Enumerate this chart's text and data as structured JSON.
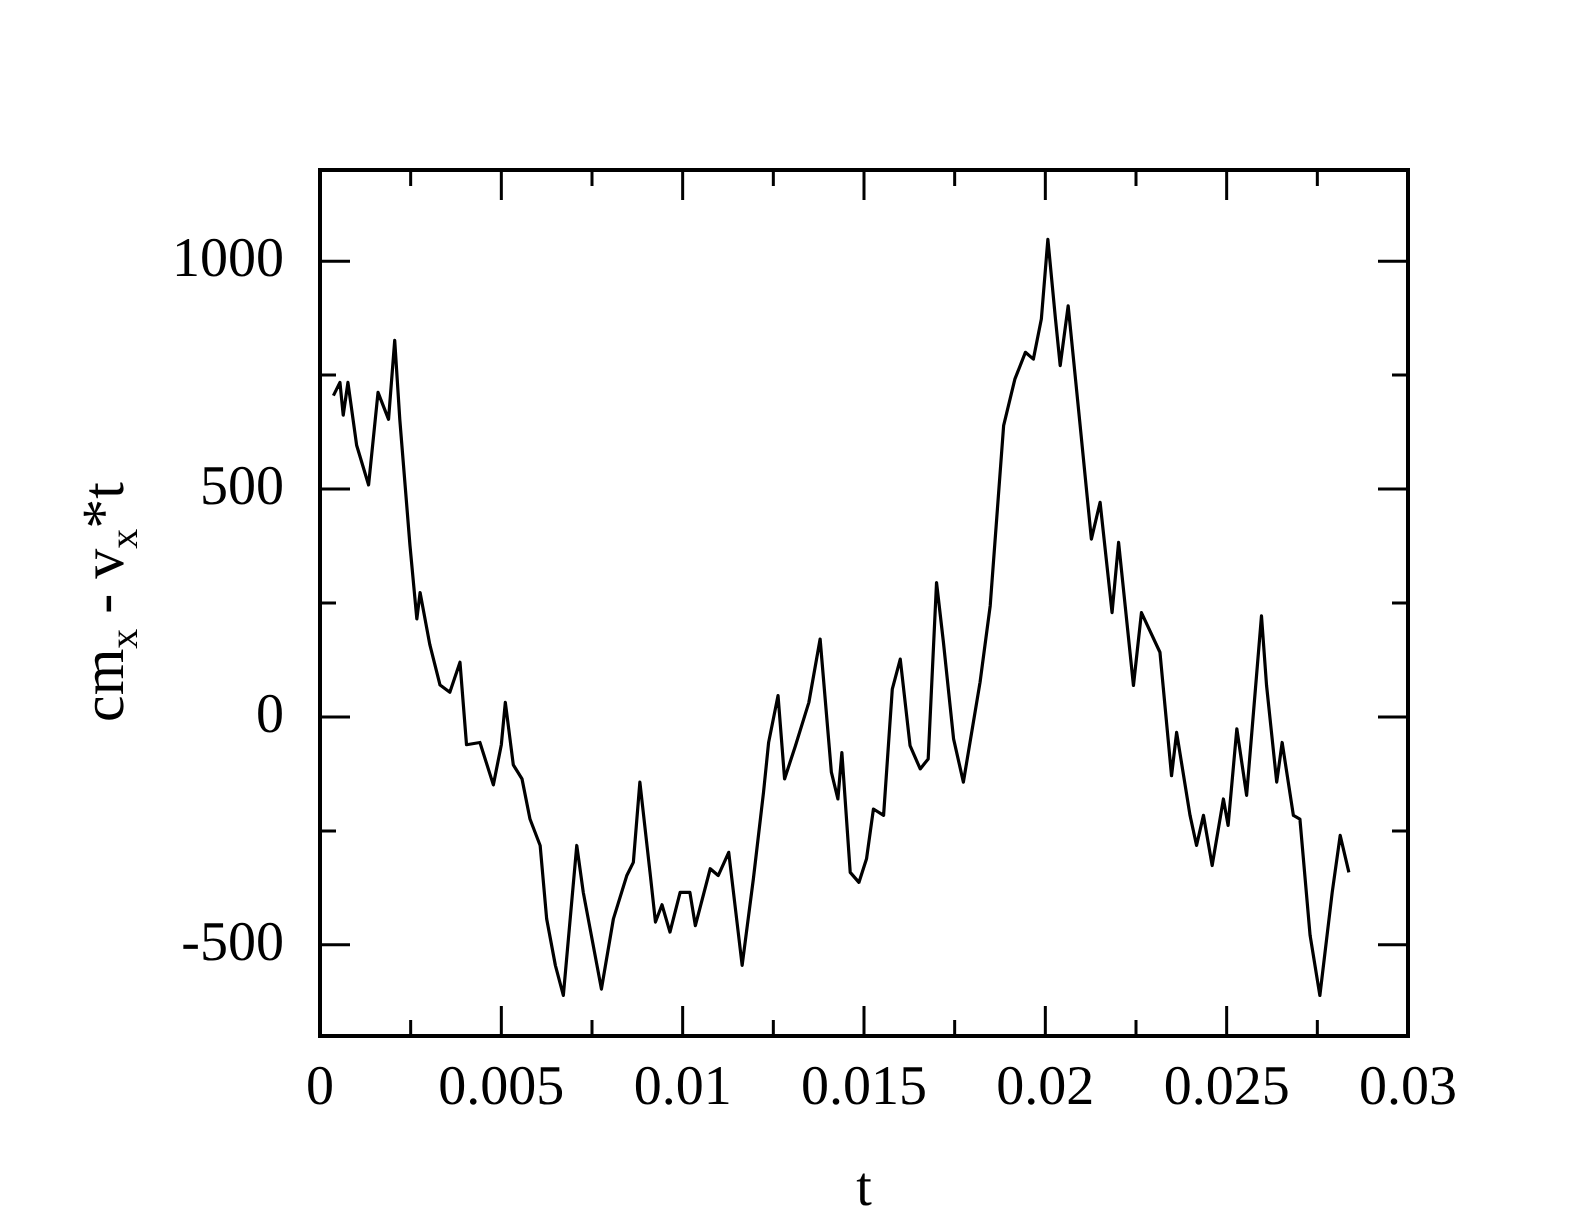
{
  "chart_data": {
    "type": "line",
    "xlabel": "t",
    "ylabel": "cm$_{x}$ - v$_{x}$*t",
    "xlim": [
      0,
      0.03
    ],
    "ylim": [
      -700,
      1200
    ],
    "xticks": [
      0,
      {
        "value": 0.0025,
        "label": null
      },
      0.005,
      {
        "value": 0.0075,
        "label": null
      },
      0.01,
      {
        "value": 0.0125,
        "label": null
      },
      0.015,
      {
        "value": 0.0175,
        "label": null
      },
      0.02,
      {
        "value": 0.0225,
        "label": null
      },
      0.025,
      {
        "value": 0.0275,
        "label": null
      },
      0.03
    ],
    "yticks": [
      -500,
      {
        "value": -250,
        "label": null
      },
      0,
      {
        "value": 250,
        "label": null
      },
      500,
      {
        "value": 750,
        "label": null
      },
      1000
    ],
    "grid": false,
    "legend": false,
    "marker": "none",
    "line_style": "solid",
    "series": [
      {
        "color": "#000000",
        "x": [
          0.00037,
          0.00055,
          0.00064,
          0.00077,
          0.00101,
          0.00134,
          0.0016,
          0.00189,
          0.00206,
          0.0022,
          0.00248,
          0.00267,
          0.00276,
          0.00303,
          0.00331,
          0.00358,
          0.00386,
          0.00404,
          0.00441,
          0.00478,
          0.005,
          0.00511,
          0.00533,
          0.00557,
          0.00579,
          0.00607,
          0.00625,
          0.00649,
          0.00671,
          0.00708,
          0.00726,
          0.00776,
          0.00809,
          0.00846,
          0.00864,
          0.00882,
          0.0091,
          0.00925,
          0.00943,
          0.00965,
          0.00993,
          0.0102,
          0.01035,
          0.01076,
          0.01098,
          0.01127,
          0.01164,
          0.01195,
          0.01223,
          0.01237,
          0.01263,
          0.01281,
          0.01311,
          0.01348,
          0.01379,
          0.0141,
          0.01428,
          0.01439,
          0.01462,
          0.01486,
          0.01507,
          0.01526,
          0.01554,
          0.01578,
          0.016,
          0.01627,
          0.01655,
          0.01677,
          0.017,
          0.01719,
          0.01747,
          0.01774,
          0.0182,
          0.01848,
          0.01885,
          0.01916,
          0.01945,
          0.01967,
          0.01989,
          0.02007,
          0.02028,
          0.02041,
          0.02063,
          0.02096,
          0.02127,
          0.02151,
          0.02184,
          0.02202,
          0.02243,
          0.02265,
          0.02316,
          0.02348,
          0.02362,
          0.02399,
          0.02417,
          0.02436,
          0.0246,
          0.02491,
          0.02504,
          0.02528,
          0.02555,
          0.02596,
          0.0261,
          0.02638,
          0.02653,
          0.02684,
          0.02702,
          0.0273,
          0.02757,
          0.02791,
          0.02813,
          0.02837
        ],
        "values": [
          705,
          734,
          662,
          734,
          596,
          509,
          712,
          653,
          826,
          653,
          377,
          215,
          273,
          158,
          70,
          54,
          120,
          -61,
          -56,
          -149,
          -61,
          32,
          -105,
          -136,
          -224,
          -282,
          -443,
          -545,
          -611,
          -282,
          -385,
          -597,
          -443,
          -348,
          -319,
          -143,
          -341,
          -450,
          -412,
          -472,
          -385,
          -385,
          -458,
          -333,
          -348,
          -297,
          -545,
          -355,
          -165,
          -56,
          47,
          -136,
          -63,
          32,
          171,
          -121,
          -180,
          -78,
          -341,
          -363,
          -311,
          -202,
          -216,
          61,
          127,
          -63,
          -114,
          -92,
          295,
          164,
          -48,
          -143,
          76,
          244,
          639,
          741,
          800,
          785,
          873,
          1048,
          873,
          771,
          902,
          639,
          390,
          471,
          229,
          383,
          69,
          229,
          142,
          -129,
          -34,
          -216,
          -282,
          -216,
          -326,
          -180,
          -238,
          -26,
          -172,
          222,
          69,
          -143,
          -56,
          -216,
          -224,
          -479,
          -611,
          -385,
          -260,
          -341
        ]
      }
    ]
  }
}
